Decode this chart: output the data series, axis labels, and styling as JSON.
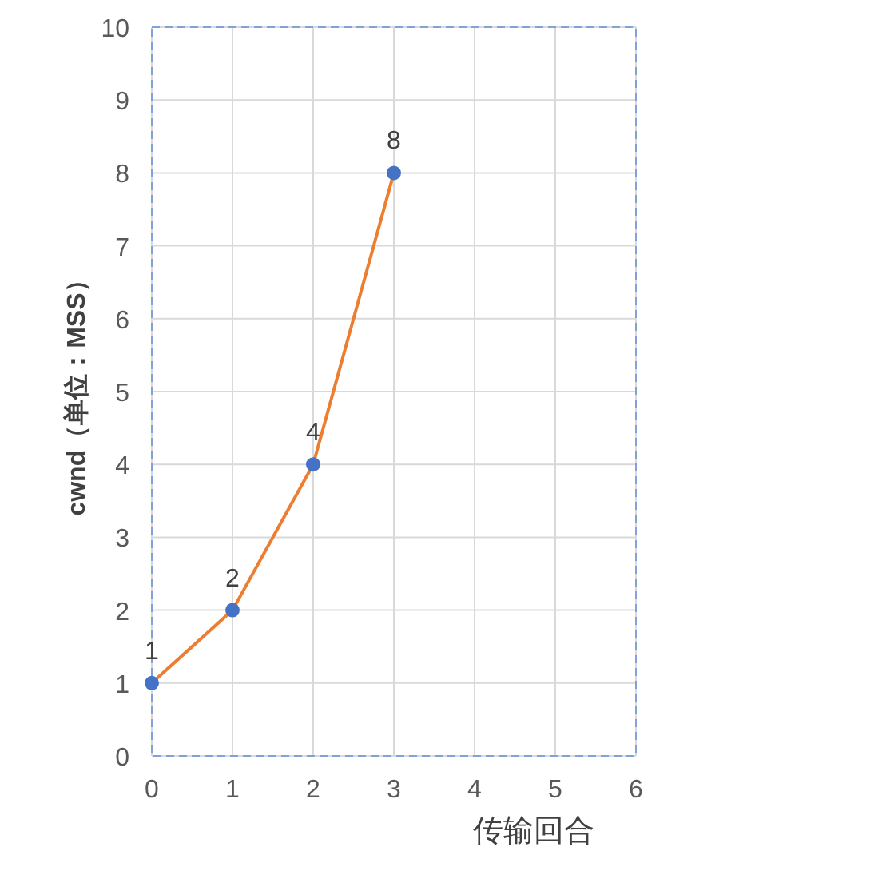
{
  "chart_data": {
    "type": "line",
    "xlabel": "传输回合",
    "ylabel": "cwnd（单位：MSS）",
    "x": [
      0,
      1,
      2,
      3
    ],
    "series": [
      {
        "color": "#ed7d31",
        "colors": [
          "#4472c4",
          "#4472c4",
          "#4472c4",
          "#4472c4"
        ],
        "values": [
          1,
          2,
          4,
          8
        ]
      }
    ],
    "marker": "circle",
    "xlim": [
      0,
      6
    ],
    "xticks": [
      0,
      1,
      2,
      3,
      4,
      5,
      6
    ],
    "ylim": [
      0,
      10
    ],
    "yticks": [
      0,
      1,
      2,
      3,
      4,
      5,
      6,
      7,
      8,
      9,
      10
    ],
    "grid": true,
    "data_labels": true
  }
}
